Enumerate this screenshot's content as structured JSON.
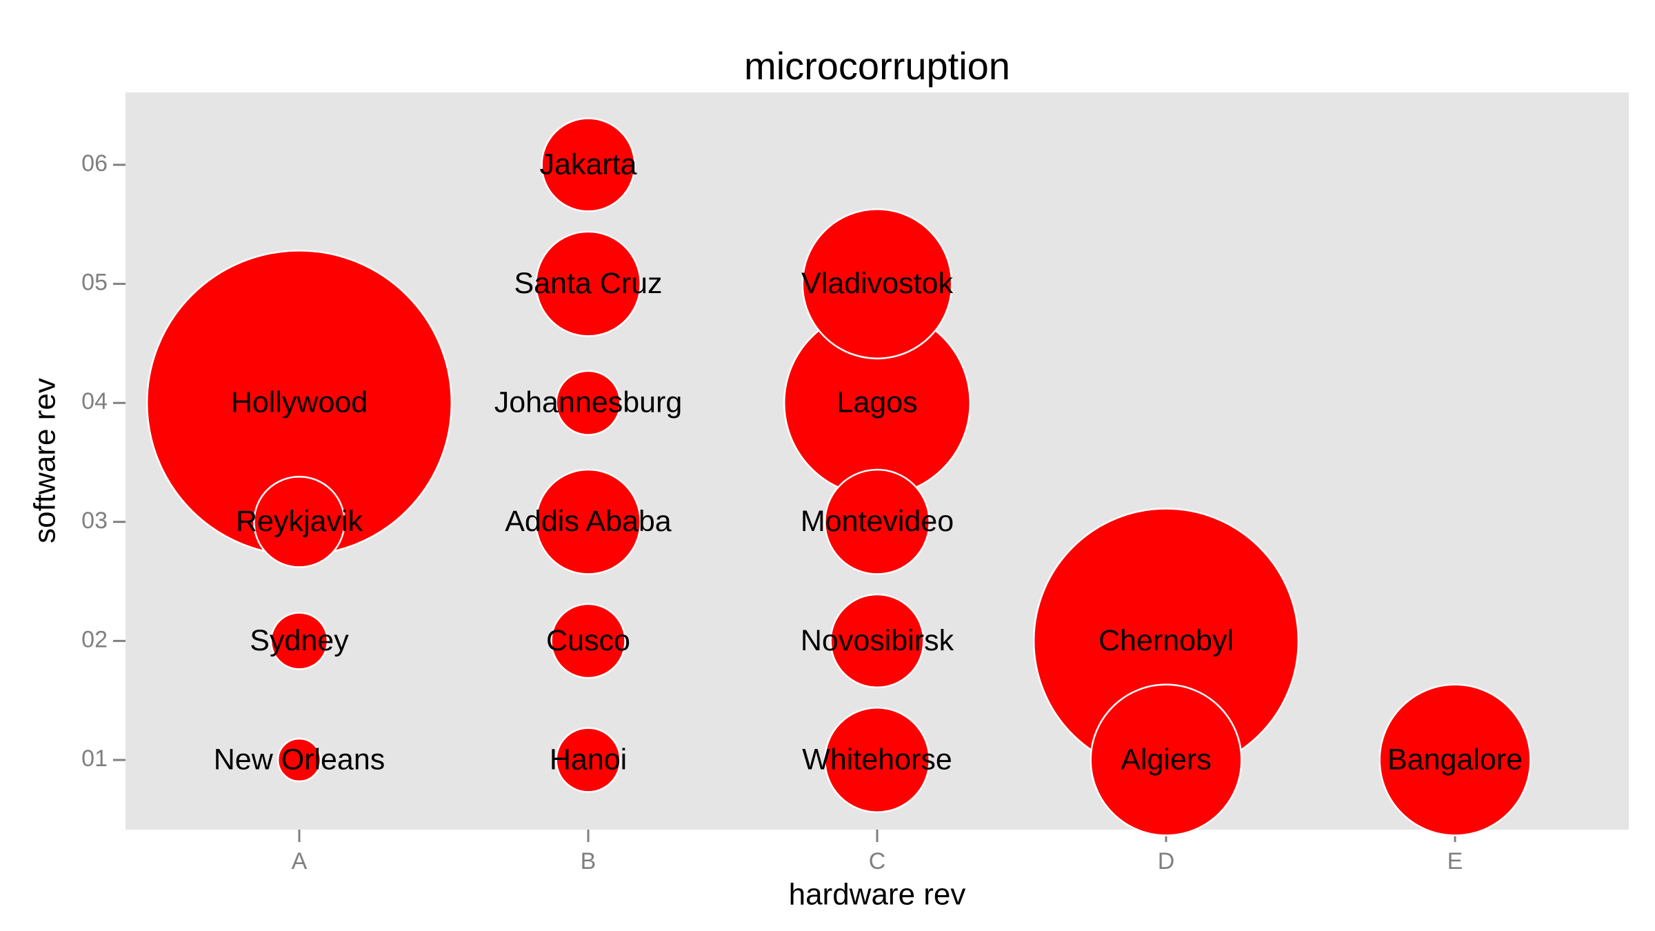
{
  "chart_data": {
    "type": "bubble",
    "title": "microcorruption",
    "xlabel": "hardware rev",
    "ylabel": "software rev",
    "xcategories": [
      "A",
      "B",
      "C",
      "D",
      "E"
    ],
    "ycategories": [
      "01",
      "02",
      "03",
      "04",
      "05",
      "06"
    ],
    "color": "#ff0000",
    "points": [
      {
        "label": "Hollywood",
        "x": "A",
        "y": "04",
        "size": 204
      },
      {
        "label": "Chernobyl",
        "x": "D",
        "y": "02",
        "size": 154
      },
      {
        "label": "Lagos",
        "x": "C",
        "y": "04",
        "size": 76
      },
      {
        "label": "Algiers",
        "x": "D",
        "y": "01",
        "size": 50
      },
      {
        "label": "Bangalore",
        "x": "E",
        "y": "01",
        "size": 50
      },
      {
        "label": "Vladivostok",
        "x": "C",
        "y": "05",
        "size": 49
      },
      {
        "label": "Santa Cruz",
        "x": "B",
        "y": "05",
        "size": 24
      },
      {
        "label": "Addis Ababa",
        "x": "B",
        "y": "03",
        "size": 24
      },
      {
        "label": "Montevideo",
        "x": "C",
        "y": "03",
        "size": 24
      },
      {
        "label": "Whitehorse",
        "x": "C",
        "y": "01",
        "size": 24
      },
      {
        "label": "Jakarta",
        "x": "B",
        "y": "06",
        "size": 19
      },
      {
        "label": "Novosibirsk",
        "x": "C",
        "y": "02",
        "size": 19
      },
      {
        "label": "Reykjavik",
        "x": "A",
        "y": "03",
        "size": 18
      },
      {
        "label": "Cusco",
        "x": "B",
        "y": "02",
        "size": 12
      },
      {
        "label": "Johannesburg",
        "x": "B",
        "y": "04",
        "size": 9
      },
      {
        "label": "Hanoi",
        "x": "B",
        "y": "01",
        "size": 9
      },
      {
        "label": "Sydney",
        "x": "A",
        "y": "02",
        "size": 7
      },
      {
        "label": "New Orleans",
        "x": "A",
        "y": "01",
        "size": 4
      }
    ]
  }
}
